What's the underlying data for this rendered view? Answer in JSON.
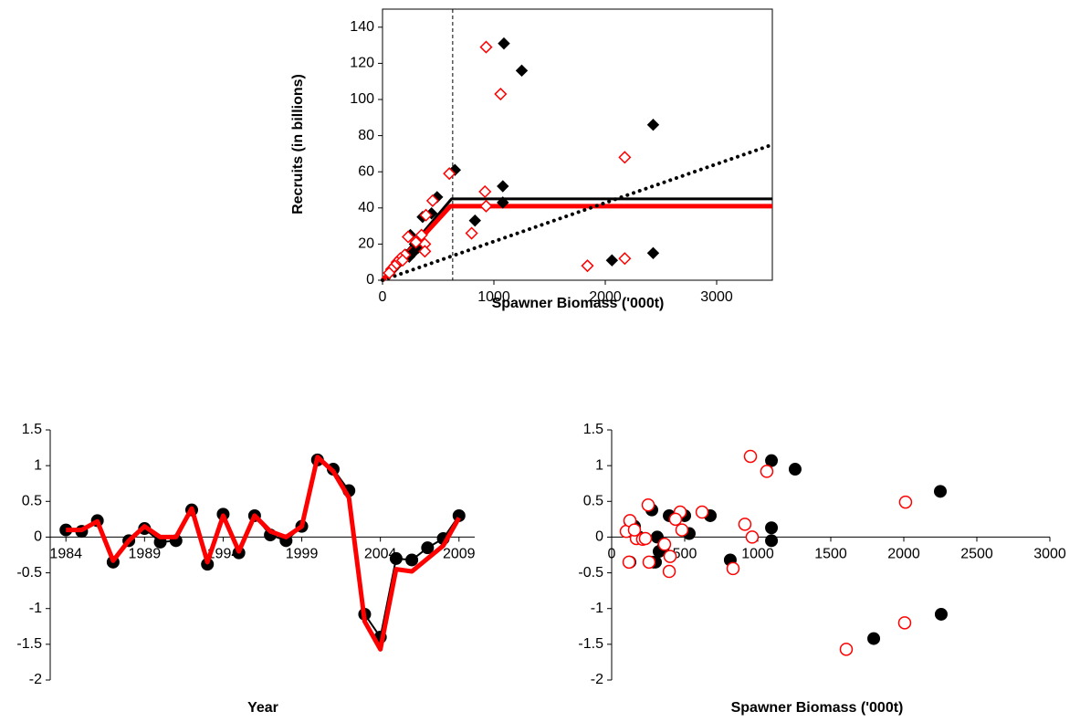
{
  "chart_data": [
    {
      "type": "scatter",
      "frame": true,
      "xlabel": "Spawner Biomass ('000t)",
      "ylabel": "Recruits (in billions)",
      "xlim": [
        0,
        3500
      ],
      "ylim": [
        0,
        150
      ],
      "xticks": [
        0,
        1000,
        2000,
        3000
      ],
      "yticks": [
        0,
        20,
        40,
        60,
        80,
        100,
        120,
        140
      ],
      "series": [
        {
          "color": "#000000",
          "marker": "diamond",
          "filled": true,
          "x": [
            1090,
            1250,
            2430,
            650,
            1080,
            1080,
            490,
            830,
            2060,
            2430,
            250,
            360,
            440,
            290,
            320,
            270,
            210,
            180,
            150,
            120,
            90,
            60,
            330,
            240
          ],
          "values": [
            131,
            116,
            86,
            61,
            52,
            43,
            46,
            33,
            11,
            15,
            25,
            35,
            37,
            20,
            18,
            15,
            14,
            12,
            10,
            8,
            6,
            4,
            22,
            13
          ]
        },
        {
          "color": "#ff0000",
          "marker": "diamond",
          "filled": false,
          "x": [
            930,
            1060,
            2175,
            600,
            920,
            930,
            800,
            1840,
            2175,
            450,
            390,
            380,
            380,
            230,
            300,
            200,
            160,
            130,
            110,
            80,
            60,
            350,
            180
          ],
          "values": [
            129,
            103,
            68,
            59,
            49,
            41,
            26,
            8,
            12,
            44,
            36,
            20,
            16,
            24,
            21,
            14,
            12,
            10,
            8,
            6,
            4,
            25,
            11
          ]
        }
      ],
      "lines": [
        {
          "color": "#000000",
          "style": "solid",
          "x": [
            0,
            620,
            3500
          ],
          "values": [
            0,
            45,
            45
          ]
        },
        {
          "color": "#ff0000",
          "style": "thick",
          "x": [
            0,
            610,
            3500
          ],
          "values": [
            0,
            41,
            41
          ]
        },
        {
          "color": "#000000",
          "style": "dotted",
          "x": [
            0,
            3500
          ],
          "values": [
            0,
            75
          ]
        }
      ],
      "vline": 630,
      "vline_style": "dashed"
    },
    {
      "type": "line",
      "frame": false,
      "xlabel": "Year",
      "x": [
        1984,
        1985,
        1986,
        1987,
        1988,
        1989,
        1990,
        1991,
        1992,
        1993,
        1994,
        1995,
        1996,
        1997,
        1998,
        1999,
        2000,
        2001,
        2002,
        2003,
        2004,
        2005,
        2006,
        2007,
        2008,
        2009
      ],
      "xlim": [
        1983,
        2010
      ],
      "ylim": [
        -2,
        1.5
      ],
      "xticks": [
        1984,
        1989,
        1994,
        1999,
        2004,
        2009
      ],
      "yticks": [
        -2,
        -1.5,
        -1,
        -0.5,
        0,
        0.5,
        1,
        1.5
      ],
      "series": [
        {
          "color": "#000000",
          "line": "thin",
          "marker": "circle",
          "filled": true,
          "values": [
            0.1,
            0.08,
            0.23,
            -0.35,
            -0.05,
            0.12,
            -0.07,
            -0.05,
            0.38,
            -0.38,
            0.32,
            -0.22,
            0.3,
            0.03,
            -0.05,
            0.15,
            1.08,
            0.95,
            0.65,
            -1.08,
            -1.4,
            -0.3,
            -0.32,
            -0.15,
            -0.02,
            0.3
          ]
        },
        {
          "color": "#ff0000",
          "line": "thick",
          "values": [
            0.1,
            0.1,
            0.22,
            -0.33,
            -0.05,
            0.15,
            0,
            0,
            0.4,
            -0.35,
            0.3,
            -0.2,
            0.3,
            0.08,
            0,
            0.15,
            1.12,
            0.92,
            0.55,
            -1.18,
            -1.57,
            -0.45,
            -0.48,
            -0.3,
            -0.12,
            0.27
          ]
        }
      ]
    },
    {
      "type": "scatter",
      "frame": false,
      "xlabel": "Spawner Biomass ('000t)",
      "xlim": [
        0,
        3000
      ],
      "ylim": [
        -2,
        1.5
      ],
      "xticks": [
        0,
        500,
        1000,
        1500,
        2000,
        2500,
        3000
      ],
      "yticks": [
        -2,
        -1.5,
        -1,
        -0.5,
        0,
        0.5,
        1,
        1.5
      ],
      "series": [
        {
          "color": "#000000",
          "marker": "circle",
          "filled": true,
          "x": [
            1094,
            1256,
            2250,
            1094,
            1094,
            812,
            1794,
            2256,
            500,
            675,
            531,
            394,
            275,
            312,
            325,
            287,
            356,
            125,
            112,
            156,
            187,
            125,
            300
          ],
          "values": [
            1.07,
            0.95,
            0.64,
            0.13,
            -0.05,
            -0.32,
            -1.42,
            -1.08,
            0.3,
            0.3,
            0.05,
            0.3,
            0.38,
            0,
            -0.2,
            -0.35,
            -0.13,
            0.22,
            0.08,
            0.15,
            0,
            -0.35,
            -0.35
          ]
        },
        {
          "color": "#ff0000",
          "marker": "circle",
          "filled": false,
          "x": [
            950,
            1062,
            2012,
            912,
            962,
            831,
            1606,
            2006,
            619,
            469,
            481,
            437,
            400,
            394,
            250,
            362,
            256,
            100,
            125,
            169,
            212,
            231,
            156,
            119
          ],
          "values": [
            1.13,
            0.92,
            0.49,
            0.18,
            0,
            -0.44,
            -1.57,
            -1.2,
            0.35,
            0.35,
            0.1,
            0.25,
            -0.27,
            -0.48,
            0.45,
            -0.1,
            -0.35,
            0.08,
            0.23,
            -0.02,
            -0.03,
            -0.02,
            0.1,
            -0.35
          ]
        }
      ]
    }
  ]
}
